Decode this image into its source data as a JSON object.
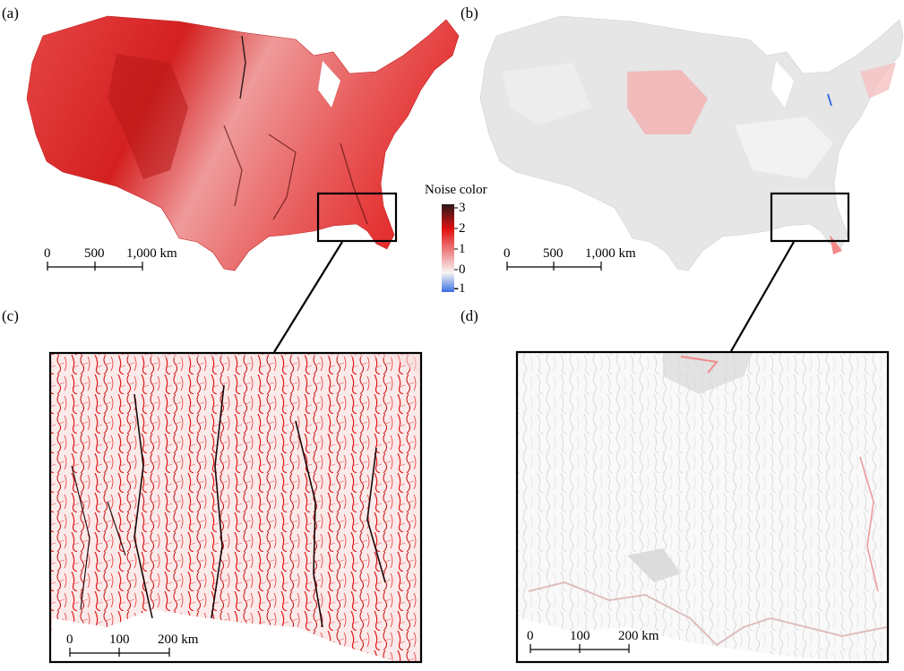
{
  "panels": {
    "a": {
      "label": "(a)"
    },
    "b": {
      "label": "(b)"
    },
    "c": {
      "label": "(c)"
    },
    "d": {
      "label": "(d)"
    }
  },
  "scalebar_conus": {
    "ticks": [
      "0",
      "500",
      "1,000 km"
    ]
  },
  "scalebar_inset": {
    "ticks": [
      "0",
      "100",
      "200 km"
    ]
  },
  "colorbar": {
    "title": "Noise color",
    "ticks": [
      "3",
      "2",
      "1",
      "0",
      "-1"
    ],
    "ramp": [
      "#2b1a1a",
      "#e01010",
      "#f08a8a",
      "#f5f5f5",
      "#3b6fe0"
    ]
  },
  "colors": {
    "map_a_fill": "#e23a3a",
    "map_b_fill": "#e6e6e6",
    "inset_c_fill": "#f7f0f0",
    "inset_d_fill": "#f8f8f8",
    "box_stroke": "#000000"
  }
}
